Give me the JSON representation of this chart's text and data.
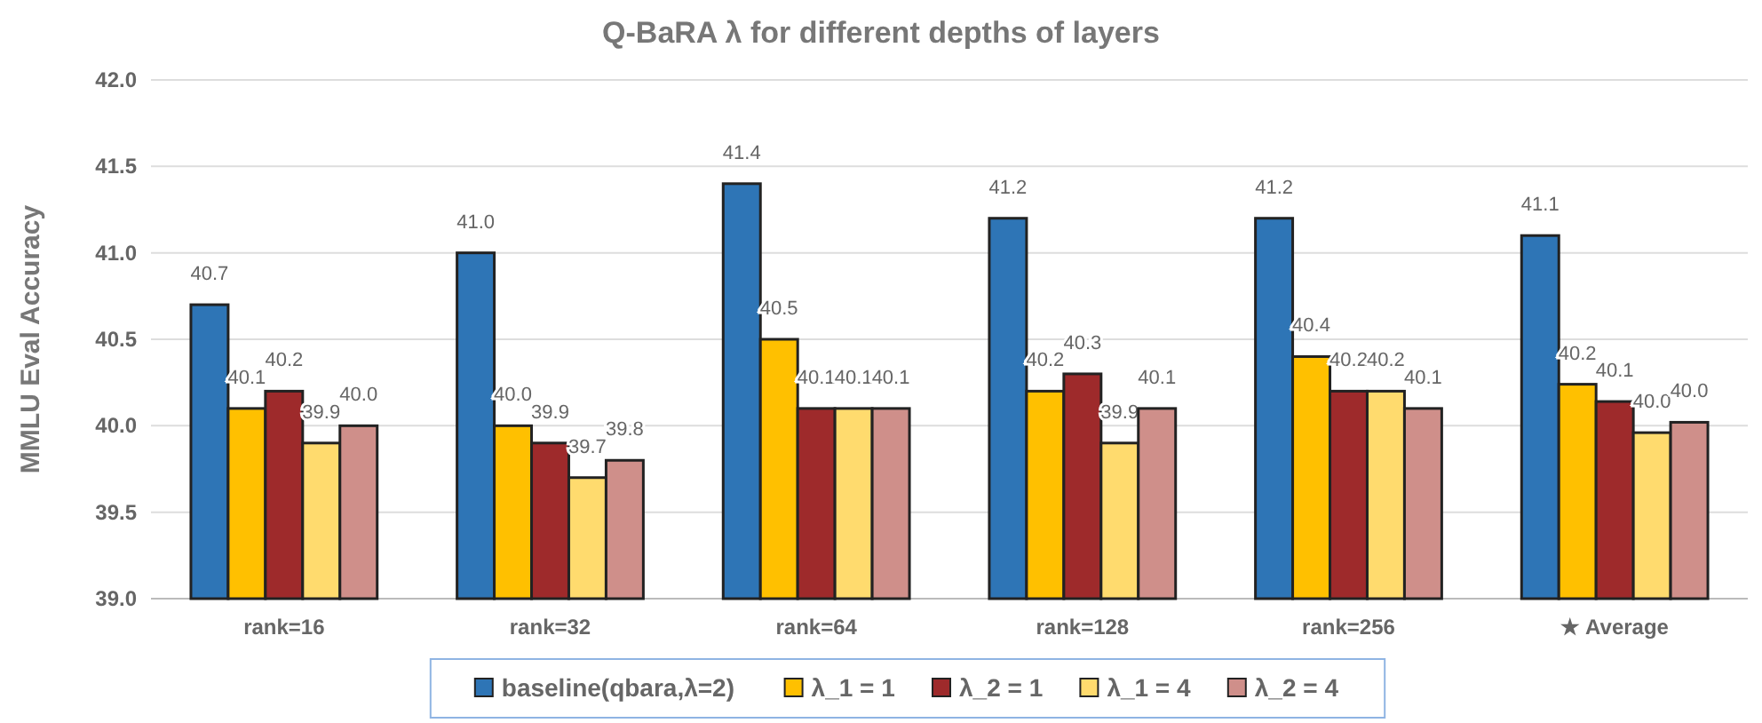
{
  "chart_data": {
    "type": "bar",
    "title": "Q-BaRA λ for different depths of layers",
    "ylabel": "MMLU Eval Accuracy",
    "categories": [
      "rank=16",
      "rank=32",
      "rank=64",
      "rank=128",
      "rank=256",
      "★ Average"
    ],
    "series": [
      {
        "name": "baseline(qbara,λ=2)",
        "color": "#2e75b6",
        "values": [
          40.7,
          41.0,
          41.4,
          41.2,
          41.2,
          41.1
        ],
        "value_labels": [
          "40.7",
          "41.0",
          "41.4",
          "41.2",
          "41.2",
          "41.1"
        ]
      },
      {
        "name": "λ_1 = 1",
        "color": "#ffc000",
        "values": [
          40.1,
          40.0,
          40.5,
          40.2,
          40.4,
          40.24
        ],
        "value_labels": [
          "40.1",
          "40.0",
          "40.5",
          "40.2",
          "40.4",
          "40.2"
        ]
      },
      {
        "name": "λ_2 = 1",
        "color": "#9e2a2b",
        "values": [
          40.2,
          39.9,
          40.1,
          40.3,
          40.2,
          40.14
        ],
        "value_labels": [
          "40.2",
          "39.9",
          "40.1",
          "40.3",
          "40.2",
          "40.1"
        ]
      },
      {
        "name": "λ_1 = 4",
        "color": "#ffdb6e",
        "values": [
          39.9,
          39.7,
          40.1,
          39.9,
          40.2,
          39.96
        ],
        "value_labels": [
          "39.9",
          "39.7",
          "40.1",
          "39.9",
          "40.2",
          "40.0"
        ]
      },
      {
        "name": "λ_2 = 4",
        "color": "#cf8f8a",
        "values": [
          40.0,
          39.8,
          40.1,
          40.1,
          40.1,
          40.02
        ],
        "value_labels": [
          "40.0",
          "39.8",
          "40.1",
          "40.1",
          "40.1",
          "40.0"
        ]
      }
    ],
    "ylim": [
      39.0,
      42.0
    ],
    "yticks": [
      {
        "value": 39,
        "label": "39.0"
      },
      {
        "value": 39.5,
        "label": "39.5"
      },
      {
        "value": 40,
        "label": "40.0"
      },
      {
        "value": 40.5,
        "label": "40.5"
      },
      {
        "value": 41,
        "label": "41.0"
      },
      {
        "value": 41.5,
        "label": "41.5"
      },
      {
        "value": 42,
        "label": "42.0"
      }
    ],
    "grid": "y",
    "legend": "bottom",
    "data_labels": true
  }
}
